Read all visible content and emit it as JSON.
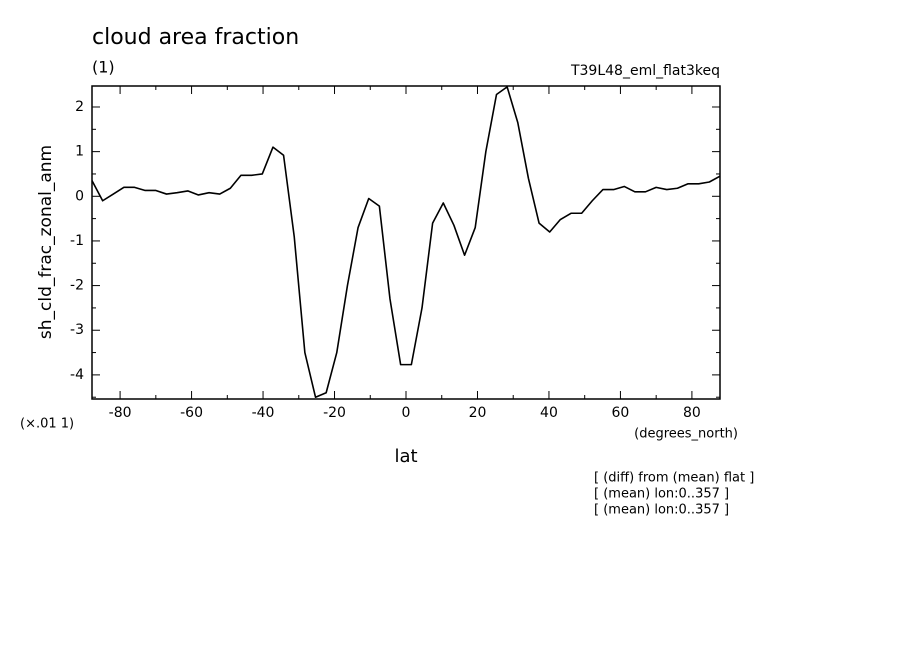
{
  "chart_data": {
    "type": "line",
    "title": "cloud area fraction",
    "subtitle": "(1)",
    "run_label": "T39L48_eml_flat3keq",
    "y_label": "sh_cld_frac_zonal_anm",
    "y_unit_label": "(×.01 1)",
    "x_unit_label": "(degrees_north)",
    "x_label": "lat",
    "annotations": [
      "[ (diff) from (mean) flat ]",
      "[ (mean) lon:0..357 ]",
      "[ (mean) lon:0..357 ]"
    ],
    "x": [
      -87.86,
      -84.88,
      -81.9,
      -78.93,
      -75.95,
      -72.97,
      -69.99,
      -67.01,
      -64.04,
      -61.06,
      -58.08,
      -55.1,
      -52.12,
      -49.15,
      -46.17,
      -43.19,
      -40.21,
      -37.23,
      -34.26,
      -31.28,
      -28.3,
      -25.32,
      -22.34,
      -19.37,
      -16.39,
      -13.41,
      -10.43,
      -7.45,
      -4.48,
      -1.5,
      1.5,
      4.48,
      7.45,
      10.43,
      13.41,
      16.39,
      19.37,
      22.34,
      25.32,
      28.3,
      31.28,
      34.26,
      37.23,
      40.21,
      43.19,
      46.17,
      49.15,
      52.12,
      55.1,
      58.08,
      61.06,
      64.04,
      67.01,
      69.99,
      72.97,
      75.95,
      78.93,
      81.9,
      84.88,
      87.86
    ],
    "series": [
      {
        "color": "#000000",
        "values": [
          0.35,
          -0.1,
          0.05,
          0.2,
          0.2,
          0.13,
          0.13,
          0.05,
          0.08,
          0.12,
          0.03,
          0.08,
          0.05,
          0.18,
          0.47,
          0.47,
          0.5,
          1.1,
          0.92,
          -0.9,
          -3.5,
          -4.5,
          -4.4,
          -3.5,
          -2.0,
          -0.7,
          -0.05,
          -0.22,
          -2.3,
          -3.77,
          -3.77,
          -2.5,
          -0.6,
          -0.15,
          -0.65,
          -1.32,
          -0.7,
          1.0,
          2.28,
          2.45,
          1.65,
          0.4,
          -0.6,
          -0.8,
          -0.52,
          -0.38,
          -0.38,
          -0.1,
          0.15,
          0.15,
          0.22,
          0.1,
          0.1,
          0.2,
          0.15,
          0.18,
          0.28,
          0.28,
          0.32,
          0.45
        ]
      }
    ],
    "xlim": [
      -87.86,
      87.86
    ],
    "ylim": [
      -4.54,
      2.47
    ],
    "xticks": [
      -80,
      -60,
      -40,
      -20,
      0,
      20,
      40,
      60,
      80
    ],
    "yticks": [
      -4,
      -3,
      -2,
      -1,
      0,
      1,
      2
    ],
    "xminorticks": [
      -70,
      -50,
      -30,
      -10,
      10,
      30,
      50,
      70
    ],
    "yminorticks": [
      -4.5,
      -3.5,
      -2.5,
      -1.5,
      -0.5,
      0.5,
      1.5
    ]
  }
}
